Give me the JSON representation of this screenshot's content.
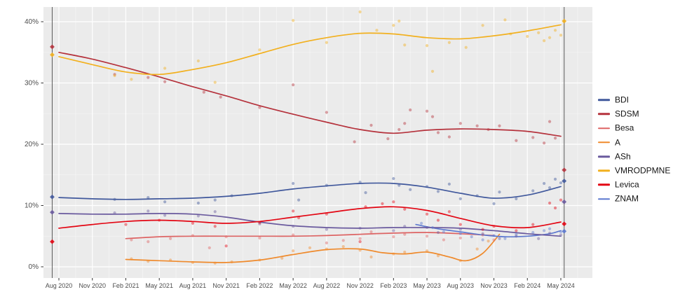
{
  "chart_data": {
    "type": "scatter+smoothed-line",
    "title": "",
    "xlabel": "",
    "ylabel": "",
    "x_unit": "months since Aug 2020",
    "x_tick_labels": [
      "Aug 2020",
      "Nov 2020",
      "Feb 2021",
      "May 2021",
      "Aug 2021",
      "Nov 2021",
      "Feb 2022",
      "May 2022",
      "Aug 2022",
      "Nov 2022",
      "Feb 2023",
      "May 2023",
      "Aug 2023",
      "Nov 2023",
      "Feb 2024",
      "May 2024"
    ],
    "y_tick_labels": [
      "0%",
      "10%",
      "20%",
      "30%",
      "40%"
    ],
    "y_tick_values": [
      0,
      10,
      20,
      30,
      40
    ],
    "xlim_months": [
      -1.4,
      47.9
    ],
    "ylim": [
      -1.8,
      42.4
    ],
    "grid": "major+minor",
    "legend_position": "right",
    "panel_color": "#ebebeb",
    "election_marker_months": [
      -0.6,
      45.3
    ],
    "draw_order": [
      2,
      3,
      7,
      4,
      6,
      0,
      1,
      5
    ],
    "series": [
      {
        "name": "BDI",
        "color": "#40589c",
        "line": [
          [
            0,
            11.3
          ],
          [
            3,
            11.1
          ],
          [
            6,
            11.0
          ],
          [
            9,
            11.1
          ],
          [
            12,
            11.2
          ],
          [
            15,
            11.5
          ],
          [
            18,
            12.0
          ],
          [
            21,
            12.7
          ],
          [
            24,
            13.2
          ],
          [
            27,
            13.6
          ],
          [
            30,
            13.6
          ],
          [
            33,
            13.0
          ],
          [
            36,
            12.0
          ],
          [
            39,
            11.2
          ],
          [
            42,
            11.7
          ],
          [
            45,
            13.1
          ]
        ],
        "points": [
          [
            -0.6,
            11.4,
            1
          ],
          [
            5,
            11.0
          ],
          [
            8,
            11.3
          ],
          [
            9.5,
            10.6
          ],
          [
            12.5,
            10.4
          ],
          [
            14,
            10.9
          ],
          [
            15.5,
            11.6
          ],
          [
            21,
            13.6
          ],
          [
            21.5,
            10.9
          ],
          [
            24,
            13.3
          ],
          [
            27,
            13.8
          ],
          [
            27.5,
            12.1
          ],
          [
            30,
            14.4
          ],
          [
            30.5,
            13.3
          ],
          [
            31.5,
            12.6
          ],
          [
            33,
            13.1
          ],
          [
            34,
            12.3
          ],
          [
            35,
            13.5
          ],
          [
            36,
            11.1
          ],
          [
            37.5,
            11.6
          ],
          [
            39,
            10.3
          ],
          [
            39.5,
            12.2
          ],
          [
            41,
            11.1
          ],
          [
            42.5,
            12.4
          ],
          [
            43.5,
            13.6
          ],
          [
            44,
            12.9
          ],
          [
            44.5,
            14.3
          ],
          [
            45,
            13.7
          ],
          [
            45.3,
            14.0,
            1
          ]
        ]
      },
      {
        "name": "SDSM",
        "color": "#b5323c",
        "line": [
          [
            0,
            35.0
          ],
          [
            3,
            33.9
          ],
          [
            6,
            32.5
          ],
          [
            9,
            31.0
          ],
          [
            12,
            29.4
          ],
          [
            15,
            27.9
          ],
          [
            18,
            26.3
          ],
          [
            21,
            24.9
          ],
          [
            24,
            23.6
          ],
          [
            27,
            22.4
          ],
          [
            30,
            21.8
          ],
          [
            33,
            22.3
          ],
          [
            36,
            22.5
          ],
          [
            39,
            22.4
          ],
          [
            42,
            22.1
          ],
          [
            45,
            21.3
          ]
        ],
        "points": [
          [
            -0.6,
            35.9,
            1
          ],
          [
            5,
            31.4
          ],
          [
            8,
            30.9
          ],
          [
            9.5,
            30.2
          ],
          [
            13,
            28.5
          ],
          [
            14.5,
            27.7
          ],
          [
            18,
            26.0
          ],
          [
            21,
            29.7
          ],
          [
            24,
            25.2
          ],
          [
            26.5,
            20.4
          ],
          [
            28,
            23.1
          ],
          [
            29.5,
            20.9
          ],
          [
            30.5,
            22.4
          ],
          [
            31,
            23.4
          ],
          [
            31.5,
            25.6
          ],
          [
            33,
            25.4
          ],
          [
            33.5,
            24.5
          ],
          [
            34,
            21.9
          ],
          [
            35,
            21.2
          ],
          [
            36,
            23.4
          ],
          [
            37.5,
            23.0
          ],
          [
            38.5,
            22.4
          ],
          [
            39.5,
            23.0
          ],
          [
            41,
            20.6
          ],
          [
            42.5,
            21.1
          ],
          [
            43.5,
            20.2
          ],
          [
            44,
            23.7
          ],
          [
            44.5,
            21.0
          ],
          [
            45.3,
            15.8,
            1
          ]
        ]
      },
      {
        "name": "Besa",
        "color": "#dd6464",
        "line": [
          [
            6,
            4.6
          ],
          [
            9,
            4.9
          ],
          [
            12,
            5.0
          ],
          [
            15,
            5.0
          ],
          [
            18,
            5.0
          ],
          [
            21,
            5.0
          ],
          [
            24,
            5.1
          ],
          [
            27,
            5.3
          ],
          [
            30,
            5.5
          ],
          [
            33,
            5.6
          ],
          [
            36,
            5.4
          ],
          [
            39,
            5.1
          ]
        ],
        "points": [
          [
            6.5,
            4.4
          ],
          [
            8,
            4.1
          ],
          [
            10,
            4.6
          ],
          [
            12,
            5.1
          ],
          [
            13.5,
            3.1
          ],
          [
            15,
            4.9
          ],
          [
            18,
            4.7
          ],
          [
            21,
            5.2
          ],
          [
            24,
            3.9
          ],
          [
            25.5,
            4.3
          ],
          [
            27,
            4.6
          ],
          [
            28,
            5.7
          ],
          [
            30,
            4.9
          ],
          [
            31,
            5.3
          ],
          [
            33,
            5.0
          ],
          [
            34.5,
            4.4
          ],
          [
            36,
            4.7
          ],
          [
            38,
            5.2
          ],
          [
            39,
            4.4
          ]
        ]
      },
      {
        "name": "A",
        "color": "#ef8a2c",
        "line": [
          [
            6,
            1.2
          ],
          [
            9,
            1.0
          ],
          [
            12,
            0.8
          ],
          [
            15,
            0.7
          ],
          [
            18,
            1.1
          ],
          [
            21,
            2.0
          ],
          [
            24,
            2.8
          ],
          [
            27,
            2.9
          ],
          [
            29,
            2.3
          ],
          [
            31,
            2.1
          ],
          [
            33,
            2.4
          ],
          [
            35,
            1.6
          ],
          [
            36.5,
            1.0
          ],
          [
            38,
            2.2
          ],
          [
            39.5,
            5.3
          ]
        ],
        "points": [
          [
            6.5,
            1.3
          ],
          [
            8,
            0.9
          ],
          [
            10,
            1.1
          ],
          [
            12,
            0.7
          ],
          [
            14,
            0.6
          ],
          [
            15.5,
            0.8
          ],
          [
            18,
            1.1
          ],
          [
            20,
            1.4
          ],
          [
            21,
            2.6
          ],
          [
            22.5,
            3.1
          ],
          [
            24,
            2.9
          ],
          [
            25.5,
            3.3
          ],
          [
            27,
            2.7
          ],
          [
            28,
            1.6
          ],
          [
            30,
            2.1
          ],
          [
            31,
            2.4
          ],
          [
            33,
            2.6
          ],
          [
            34,
            1.8
          ],
          [
            36,
            1.0
          ],
          [
            37.5,
            2.9
          ],
          [
            38.5,
            4.2
          ]
        ]
      },
      {
        "name": "ASh",
        "color": "#6a5a9e",
        "line": [
          [
            0,
            8.7
          ],
          [
            3,
            8.6
          ],
          [
            6,
            8.6
          ],
          [
            9,
            8.7
          ],
          [
            12,
            8.6
          ],
          [
            15,
            8.1
          ],
          [
            18,
            7.3
          ],
          [
            21,
            6.7
          ],
          [
            24,
            6.4
          ],
          [
            27,
            6.3
          ],
          [
            30,
            6.4
          ],
          [
            33,
            6.4
          ],
          [
            36,
            6.3
          ],
          [
            39,
            5.9
          ],
          [
            42,
            5.4
          ],
          [
            45,
            5.0
          ]
        ],
        "points": [
          [
            -0.6,
            8.9,
            1
          ],
          [
            5,
            8.8
          ],
          [
            8,
            9.1
          ],
          [
            9.5,
            8.4
          ],
          [
            12.5,
            8.3
          ],
          [
            14,
            9.0
          ],
          [
            18,
            7.0
          ],
          [
            21,
            6.6
          ],
          [
            24,
            6.1
          ],
          [
            27,
            6.3
          ],
          [
            30,
            5.9
          ],
          [
            31,
            6.6
          ],
          [
            33,
            6.4
          ],
          [
            34,
            5.6
          ],
          [
            36,
            6.1
          ],
          [
            38,
            5.4
          ],
          [
            39.5,
            4.6
          ],
          [
            41,
            5.0
          ],
          [
            43,
            4.6
          ],
          [
            44,
            5.5
          ],
          [
            45,
            5.2
          ],
          [
            45.3,
            10.6,
            1
          ]
        ]
      },
      {
        "name": "VMRODPMNE",
        "color": "#f2b01e",
        "line": [
          [
            0,
            34.3
          ],
          [
            3,
            33.0
          ],
          [
            6,
            31.8
          ],
          [
            9,
            31.4
          ],
          [
            12,
            32.2
          ],
          [
            15,
            33.3
          ],
          [
            18,
            34.8
          ],
          [
            21,
            36.3
          ],
          [
            24,
            37.4
          ],
          [
            27,
            38.1
          ],
          [
            30,
            38.0
          ],
          [
            33,
            37.4
          ],
          [
            36,
            37.2
          ],
          [
            39,
            37.7
          ],
          [
            42,
            38.5
          ],
          [
            45,
            39.5
          ]
        ],
        "points": [
          [
            -0.6,
            34.6,
            1
          ],
          [
            5,
            31.2
          ],
          [
            6.5,
            30.6
          ],
          [
            9.5,
            32.4
          ],
          [
            12.5,
            33.6
          ],
          [
            14,
            30.1
          ],
          [
            18,
            35.4
          ],
          [
            21,
            40.2
          ],
          [
            24,
            36.6
          ],
          [
            27,
            41.6
          ],
          [
            28.5,
            38.6
          ],
          [
            30,
            39.4
          ],
          [
            30.5,
            40.1
          ],
          [
            31,
            36.2
          ],
          [
            33,
            36.1
          ],
          [
            33.5,
            31.9
          ],
          [
            35,
            36.6
          ],
          [
            36.5,
            35.8
          ],
          [
            38,
            39.4
          ],
          [
            40,
            40.3
          ],
          [
            40.5,
            38.0
          ],
          [
            42,
            37.6
          ],
          [
            43,
            38.2
          ],
          [
            43.5,
            36.9
          ],
          [
            44,
            37.4
          ],
          [
            44.5,
            38.6
          ],
          [
            45,
            37.8
          ],
          [
            45.3,
            40.1,
            1
          ]
        ]
      },
      {
        "name": "Levica",
        "color": "#e30613",
        "line": [
          [
            0,
            6.3
          ],
          [
            3,
            6.9
          ],
          [
            6,
            7.4
          ],
          [
            9,
            7.6
          ],
          [
            12,
            7.4
          ],
          [
            15,
            7.1
          ],
          [
            18,
            7.4
          ],
          [
            21,
            8.1
          ],
          [
            24,
            8.8
          ],
          [
            27,
            9.5
          ],
          [
            30,
            9.8
          ],
          [
            33,
            9.2
          ],
          [
            36,
            7.9
          ],
          [
            39,
            6.7
          ],
          [
            42,
            6.4
          ],
          [
            45,
            7.3
          ]
        ],
        "points": [
          [
            -0.6,
            4.1,
            1
          ],
          [
            6,
            6.9
          ],
          [
            9,
            7.6
          ],
          [
            12,
            7.1
          ],
          [
            14,
            6.6
          ],
          [
            15,
            3.4
          ],
          [
            18,
            7.2
          ],
          [
            21,
            9.1
          ],
          [
            21.5,
            8.0
          ],
          [
            24,
            8.6
          ],
          [
            27,
            4.1
          ],
          [
            27.5,
            9.8
          ],
          [
            29,
            10.3
          ],
          [
            30,
            10.6
          ],
          [
            31,
            9.4
          ],
          [
            33,
            8.6
          ],
          [
            34,
            7.6
          ],
          [
            35,
            9.0
          ],
          [
            36,
            6.9
          ],
          [
            38,
            6.1
          ],
          [
            39,
            6.6
          ],
          [
            41,
            5.9
          ],
          [
            42.5,
            6.9
          ],
          [
            44,
            10.4
          ],
          [
            44.5,
            9.6
          ],
          [
            45,
            10.9
          ],
          [
            45.3,
            7.0,
            1
          ]
        ]
      },
      {
        "name": "ZNAM",
        "color": "#5c78cf",
        "line": [
          [
            32,
            6.9
          ],
          [
            34,
            6.2
          ],
          [
            36,
            5.7
          ],
          [
            38,
            5.2
          ],
          [
            40,
            4.9
          ],
          [
            42,
            5.0
          ],
          [
            44,
            5.4
          ],
          [
            45,
            5.9
          ]
        ],
        "points": [
          [
            32.5,
            7.1
          ],
          [
            33.5,
            6.4
          ],
          [
            34.5,
            5.7
          ],
          [
            36,
            5.4
          ],
          [
            37,
            4.9
          ],
          [
            38,
            4.4
          ],
          [
            39,
            5.1
          ],
          [
            40,
            4.6
          ],
          [
            41,
            5.3
          ],
          [
            42.5,
            5.6
          ],
          [
            43.5,
            5.9
          ],
          [
            44,
            6.2
          ],
          [
            45,
            5.7
          ],
          [
            45.3,
            5.8,
            1
          ]
        ]
      }
    ]
  }
}
